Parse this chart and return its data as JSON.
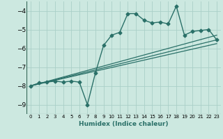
{
  "xlabel": "Humidex (Indice chaleur)",
  "background_color": "#cce8e0",
  "grid_color": "#aacfc8",
  "line_color": "#2a7068",
  "xlim": [
    -0.5,
    23.5
  ],
  "ylim": [
    -9.5,
    -3.5
  ],
  "yticks": [
    -9,
    -8,
    -7,
    -6,
    -5,
    -4
  ],
  "xticks": [
    0,
    1,
    2,
    3,
    4,
    5,
    6,
    7,
    8,
    9,
    10,
    11,
    12,
    13,
    14,
    15,
    16,
    17,
    18,
    19,
    20,
    21,
    22,
    23
  ],
  "main_x": [
    0,
    1,
    2,
    3,
    4,
    5,
    6,
    7,
    8,
    9,
    10,
    11,
    12,
    13,
    14,
    15,
    16,
    17,
    18,
    19,
    20,
    21,
    22,
    23
  ],
  "main_y": [
    -8.0,
    -7.85,
    -7.8,
    -7.75,
    -7.8,
    -7.75,
    -7.8,
    -9.0,
    -7.3,
    -5.85,
    -5.3,
    -5.15,
    -4.15,
    -4.15,
    -4.5,
    -4.65,
    -4.6,
    -4.7,
    -3.75,
    -5.3,
    -5.1,
    -5.05,
    -5.0,
    -5.55
  ],
  "line1_x": [
    0,
    23
  ],
  "line1_y": [
    -8.0,
    -5.3
  ],
  "line2_x": [
    0,
    23
  ],
  "line2_y": [
    -8.0,
    -5.55
  ],
  "line3_x": [
    0,
    23
  ],
  "line3_y": [
    -8.0,
    -5.75
  ]
}
